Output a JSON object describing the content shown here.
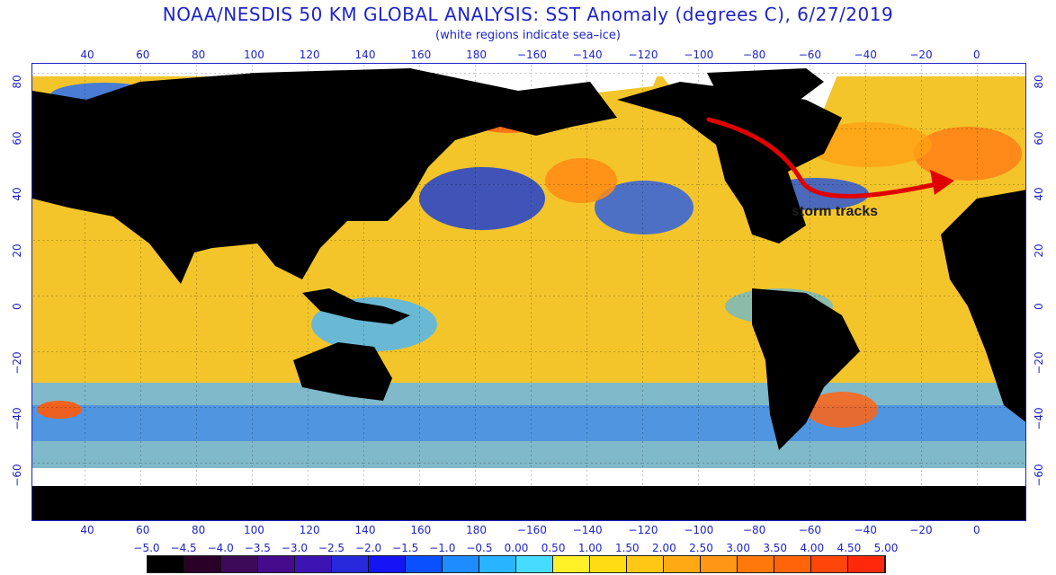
{
  "title": "NOAA/NESDIS 50 KM GLOBAL ANALYSIS: SST Anomaly (degrees C), 6/27/2019",
  "subtitle": "(white regions indicate sea–ice)",
  "annotation": "storm tracks",
  "lon_ticks": [
    "40",
    "60",
    "80",
    "100",
    "120",
    "140",
    "160",
    "180",
    "−160",
    "−140",
    "−120",
    "−100",
    "−80",
    "−60",
    "−40",
    "−20",
    "0"
  ],
  "lat_ticks_left": [
    "80",
    "60",
    "40",
    "20",
    "0",
    "−20",
    "−40",
    "−60"
  ],
  "lat_ticks_right": [
    "80",
    "60",
    "40",
    "20",
    "0",
    "−20",
    "−40",
    "−60"
  ],
  "scale_labels": [
    "−5.0",
    "−4.5",
    "−4.0",
    "−3.5",
    "−3.0",
    "−2.5",
    "−2.0",
    "−1.5",
    "−1.0",
    "−0.5",
    "0.00",
    "0.50",
    "1.00",
    "1.50",
    "2.00",
    "2.50",
    "3.00",
    "3.50",
    "4.00",
    "4.50",
    "5.00"
  ],
  "scale_colors": [
    "#000000",
    "#2a0028",
    "#3c0a58",
    "#460a8c",
    "#3c14b4",
    "#2828dc",
    "#1414f5",
    "#0a50ff",
    "#1e8cff",
    "#28b4ff",
    "#46dcff",
    "#fff028",
    "#ffdc14",
    "#ffc814",
    "#ffaa14",
    "#ff9614",
    "#ff780a",
    "#ff640a",
    "#ff460a",
    "#ff280a",
    "#ff0a0a"
  ],
  "colors": {
    "label_blue": "#1e24c8",
    "land": "#000000",
    "ice": "#ffffff",
    "storm_arrow": "#e00000"
  }
}
